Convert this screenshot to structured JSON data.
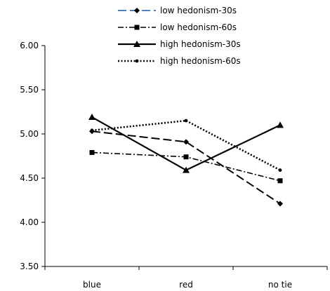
{
  "chart_data": {
    "type": "line",
    "title": "",
    "xlabel": "",
    "ylabel": "",
    "categories": [
      "blue",
      "red",
      "no tie"
    ],
    "ylim": [
      3.5,
      6.0
    ],
    "yticks": [
      "3.50",
      "4.00",
      "4.50",
      "5.00",
      "5.50",
      "6.00"
    ],
    "ytick_values": [
      3.5,
      4.0,
      4.5,
      5.0,
      5.5,
      6.0
    ],
    "grid": false,
    "legend_position": "top",
    "series": [
      {
        "name": "low hedonism-30s",
        "values": [
          5.03,
          4.91,
          4.21
        ],
        "color": "#000000",
        "legend_color": "#4f81bd",
        "dash": "long-dash",
        "marker": "diamond"
      },
      {
        "name": "low hedonism-60s",
        "values": [
          4.79,
          4.74,
          4.47
        ],
        "color": "#000000",
        "legend_color": "#000000",
        "dash": "dash-dot",
        "marker": "square"
      },
      {
        "name": "high hedonism-30s",
        "values": [
          5.19,
          4.59,
          5.1
        ],
        "color": "#000000",
        "legend_color": "#000000",
        "dash": "solid",
        "marker": "triangle"
      },
      {
        "name": "high hedonism-60s",
        "values": [
          5.04,
          5.15,
          4.59
        ],
        "color": "#000000",
        "legend_color": "#000000",
        "dash": "dotted",
        "marker": "circle"
      }
    ]
  }
}
